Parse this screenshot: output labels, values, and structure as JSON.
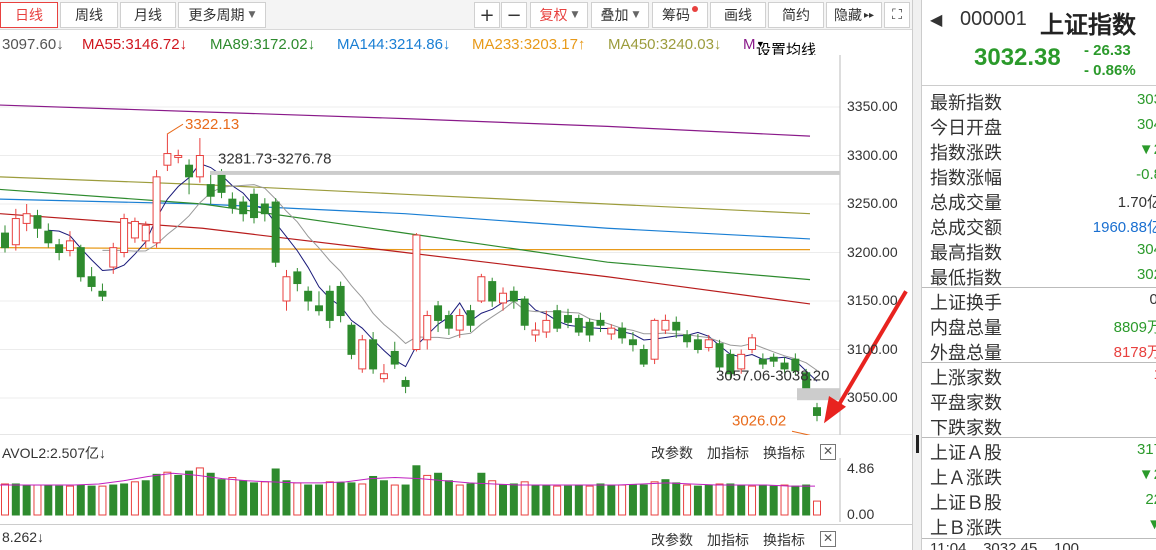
{
  "toolbar": {
    "tabs": [
      {
        "label": "日线",
        "active": true
      },
      {
        "label": "周线"
      },
      {
        "label": "月线"
      },
      {
        "label": "更多周期"
      }
    ],
    "zoom_in": "+",
    "zoom_out": "−",
    "adjust": "复权",
    "overlay": "叠加",
    "chips": "筹码",
    "draw": "画线",
    "brief": "简约",
    "hide": "隐藏",
    "more_glyph": "▸▸"
  },
  "ma_legend": [
    {
      "text": "3097.60↓",
      "color": "#555555"
    },
    {
      "text": "MA55:3146.72↓",
      "color": "#d0161e"
    },
    {
      "text": "MA89:3172.02↓",
      "color": "#2e8b2e"
    },
    {
      "text": "MA144:3214.86↓",
      "color": "#1a7fd4"
    },
    {
      "text": "MA233:3203.17↑",
      "color": "#e89a1a"
    },
    {
      "text": "MA450:3240.03↓",
      "color": "#9c9c3c"
    },
    {
      "text": "M",
      "color": "#8a1a8a"
    },
    {
      "text": "设置均线",
      "color": "#333333"
    }
  ],
  "annotations": {
    "high": "3322.13",
    "gap": "3281.73-3276.78",
    "gap2": "3057.06-3038.20",
    "low": "3026.02"
  },
  "price_axis": {
    "ticks": [
      "3350.00",
      "3300.00",
      "3250.00",
      "3200.00",
      "3150.00",
      "3100.00",
      "3050.00"
    ]
  },
  "volume": {
    "label": "AVOL2:2.507亿↓",
    "buttons": [
      "改参数",
      "加指标",
      "换指标"
    ],
    "ticks": [
      "4.86",
      "0.00"
    ],
    "bottom_label": "8.262↓"
  },
  "panel": {
    "code": "000001",
    "name": "上证指数",
    "price": "3032.38",
    "change": "- 26.33",
    "change_pct": "- 0.86%",
    "rows": [
      {
        "label": "最新指数",
        "value": "303",
        "color": "#2b9a2b"
      },
      {
        "label": "今日开盘",
        "value": "304",
        "color": "#2b9a2b"
      },
      {
        "label": "指数涨跌",
        "value": "▼2",
        "color": "#2b9a2b"
      },
      {
        "label": "指数涨幅",
        "value": "-0.8",
        "color": "#2b9a2b"
      },
      {
        "label": "总成交量",
        "value": "1.70亿",
        "color": "#333333"
      },
      {
        "label": "总成交额",
        "value": "1960.88亿",
        "color": "#1a6fd0"
      },
      {
        "label": "最高指数",
        "value": "304",
        "color": "#2b9a2b"
      },
      {
        "label": "最低指数",
        "value": "302",
        "color": "#2b9a2b"
      },
      {
        "label": "上证换手",
        "value": "0.",
        "color": "#333333"
      },
      {
        "label": "内盘总量",
        "value": "8809万",
        "color": "#2b9a2b"
      },
      {
        "label": "外盘总量",
        "value": "8178万",
        "color": "#e8413f"
      },
      {
        "label": "上涨家数",
        "value": "1",
        "color": "#e8413f"
      },
      {
        "label": "平盘家数",
        "value": "",
        "color": "#333333"
      },
      {
        "label": "下跌家数",
        "value": "",
        "color": "#333333"
      },
      {
        "label": "上证Ａ股",
        "value": "317",
        "color": "#2b9a2b"
      },
      {
        "label": "上Ａ涨跌",
        "value": "▼2",
        "color": "#2b9a2b"
      },
      {
        "label": "上证Ｂ股",
        "value": "22",
        "color": "#2b9a2b"
      },
      {
        "label": "上Ｂ涨跌",
        "value": "▼",
        "color": "#2b9a2b"
      }
    ],
    "footer": "11:04    3032.45    100"
  },
  "chart_data": {
    "type": "candlestick",
    "y_axis_ticks": [
      3050,
      3100,
      3150,
      3200,
      3250,
      3300,
      3350
    ],
    "candles": [
      {
        "o": 3220,
        "c": 3205,
        "h": 3228,
        "l": 3200
      },
      {
        "o": 3208,
        "c": 3235,
        "h": 3245,
        "l": 3202
      },
      {
        "o": 3230,
        "c": 3240,
        "h": 3250,
        "l": 3222
      },
      {
        "o": 3238,
        "c": 3225,
        "h": 3244,
        "l": 3215
      },
      {
        "o": 3222,
        "c": 3210,
        "h": 3230,
        "l": 3205
      },
      {
        "o": 3208,
        "c": 3200,
        "h": 3214,
        "l": 3192
      },
      {
        "o": 3202,
        "c": 3212,
        "h": 3222,
        "l": 3196
      },
      {
        "o": 3205,
        "c": 3175,
        "h": 3208,
        "l": 3170
      },
      {
        "o": 3175,
        "c": 3165,
        "h": 3185,
        "l": 3160
      },
      {
        "o": 3160,
        "c": 3155,
        "h": 3168,
        "l": 3150
      },
      {
        "o": 3185,
        "c": 3205,
        "h": 3210,
        "l": 3178
      },
      {
        "o": 3200,
        "c": 3235,
        "h": 3240,
        "l": 3195
      },
      {
        "o": 3215,
        "c": 3232,
        "h": 3236,
        "l": 3210
      },
      {
        "o": 3212,
        "c": 3228,
        "h": 3232,
        "l": 3205
      },
      {
        "o": 3210,
        "c": 3278,
        "h": 3285,
        "l": 3205
      },
      {
        "o": 3290,
        "c": 3302,
        "h": 3322,
        "l": 3284
      },
      {
        "o": 3298,
        "c": 3300,
        "h": 3306,
        "l": 3292
      },
      {
        "o": 3290,
        "c": 3278,
        "h": 3296,
        "l": 3260
      },
      {
        "o": 3278,
        "c": 3300,
        "h": 3318,
        "l": 3272
      },
      {
        "o": 3270,
        "c": 3258,
        "h": 3280,
        "l": 3250
      },
      {
        "o": 3282,
        "c": 3262,
        "h": 3286,
        "l": 3256
      },
      {
        "o": 3255,
        "c": 3246,
        "h": 3262,
        "l": 3240
      },
      {
        "o": 3252,
        "c": 3240,
        "h": 3258,
        "l": 3232
      },
      {
        "o": 3260,
        "c": 3236,
        "h": 3266,
        "l": 3230
      },
      {
        "o": 3250,
        "c": 3240,
        "h": 3256,
        "l": 3232
      },
      {
        "o": 3252,
        "c": 3190,
        "h": 3256,
        "l": 3185
      },
      {
        "o": 3150,
        "c": 3175,
        "h": 3182,
        "l": 3140
      },
      {
        "o": 3180,
        "c": 3168,
        "h": 3184,
        "l": 3160
      },
      {
        "o": 3160,
        "c": 3150,
        "h": 3165,
        "l": 3140
      },
      {
        "o": 3145,
        "c": 3140,
        "h": 3160,
        "l": 3135
      },
      {
        "o": 3160,
        "c": 3130,
        "h": 3166,
        "l": 3122
      },
      {
        "o": 3165,
        "c": 3135,
        "h": 3170,
        "l": 3128
      },
      {
        "o": 3125,
        "c": 3095,
        "h": 3128,
        "l": 3090
      },
      {
        "o": 3080,
        "c": 3110,
        "h": 3115,
        "l": 3076
      },
      {
        "o": 3110,
        "c": 3080,
        "h": 3118,
        "l": 3075
      },
      {
        "o": 3070,
        "c": 3075,
        "h": 3085,
        "l": 3066
      },
      {
        "o": 3098,
        "c": 3085,
        "h": 3108,
        "l": 3080
      },
      {
        "o": 3068,
        "c": 3062,
        "h": 3072,
        "l": 3055
      },
      {
        "o": 3100,
        "c": 3218,
        "h": 3220,
        "l": 3098
      },
      {
        "o": 3110,
        "c": 3135,
        "h": 3140,
        "l": 3100
      },
      {
        "o": 3145,
        "c": 3130,
        "h": 3150,
        "l": 3118
      },
      {
        "o": 3135,
        "c": 3122,
        "h": 3140,
        "l": 3115
      },
      {
        "o": 3120,
        "c": 3135,
        "h": 3142,
        "l": 3112
      },
      {
        "o": 3140,
        "c": 3125,
        "h": 3146,
        "l": 3118
      },
      {
        "o": 3150,
        "c": 3175,
        "h": 3178,
        "l": 3148
      },
      {
        "o": 3170,
        "c": 3150,
        "h": 3174,
        "l": 3144
      },
      {
        "o": 3148,
        "c": 3158,
        "h": 3164,
        "l": 3140
      },
      {
        "o": 3160,
        "c": 3150,
        "h": 3165,
        "l": 3142
      },
      {
        "o": 3152,
        "c": 3125,
        "h": 3155,
        "l": 3120
      },
      {
        "o": 3115,
        "c": 3120,
        "h": 3128,
        "l": 3108
      },
      {
        "o": 3118,
        "c": 3130,
        "h": 3140,
        "l": 3112
      },
      {
        "o": 3140,
        "c": 3122,
        "h": 3146,
        "l": 3118
      },
      {
        "o": 3135,
        "c": 3128,
        "h": 3142,
        "l": 3122
      },
      {
        "o": 3132,
        "c": 3118,
        "h": 3136,
        "l": 3114
      },
      {
        "o": 3128,
        "c": 3115,
        "h": 3132,
        "l": 3108
      },
      {
        "o": 3130,
        "c": 3125,
        "h": 3138,
        "l": 3118
      },
      {
        "o": 3116,
        "c": 3122,
        "h": 3126,
        "l": 3110
      },
      {
        "o": 3122,
        "c": 3112,
        "h": 3128,
        "l": 3106
      },
      {
        "o": 3110,
        "c": 3105,
        "h": 3118,
        "l": 3098
      },
      {
        "o": 3100,
        "c": 3085,
        "h": 3105,
        "l": 3082
      },
      {
        "o": 3090,
        "c": 3130,
        "h": 3132,
        "l": 3085
      },
      {
        "o": 3120,
        "c": 3130,
        "h": 3136,
        "l": 3116
      },
      {
        "o": 3128,
        "c": 3120,
        "h": 3134,
        "l": 3112
      },
      {
        "o": 3115,
        "c": 3108,
        "h": 3120,
        "l": 3102
      },
      {
        "o": 3110,
        "c": 3100,
        "h": 3116,
        "l": 3096
      },
      {
        "o": 3102,
        "c": 3110,
        "h": 3115,
        "l": 3098
      },
      {
        "o": 3106,
        "c": 3082,
        "h": 3110,
        "l": 3078
      },
      {
        "o": 3095,
        "c": 3075,
        "h": 3100,
        "l": 3070
      },
      {
        "o": 3080,
        "c": 3095,
        "h": 3100,
        "l": 3075
      },
      {
        "o": 3100,
        "c": 3112,
        "h": 3116,
        "l": 3096
      },
      {
        "o": 3090,
        "c": 3085,
        "h": 3096,
        "l": 3080
      },
      {
        "o": 3092,
        "c": 3088,
        "h": 3096,
        "l": 3082
      },
      {
        "o": 3086,
        "c": 3080,
        "h": 3092,
        "l": 3076
      },
      {
        "o": 3090,
        "c": 3078,
        "h": 3096,
        "l": 3074
      },
      {
        "o": 3076,
        "c": 3058,
        "h": 3080,
        "l": 3055
      },
      {
        "o": 3040,
        "c": 3032,
        "h": 3045,
        "l": 3026
      }
    ],
    "ma_lines": {
      "MA450": [
        3278,
        3270,
        3260,
        3250,
        3240
      ],
      "MA233": [
        3205,
        3204,
        3203,
        3203,
        3203
      ],
      "MA144": [
        3255,
        3250,
        3240,
        3225,
        3214
      ],
      "MA89": [
        3265,
        3250,
        3220,
        3190,
        3172
      ],
      "MA55": [
        3240,
        3225,
        3200,
        3175,
        3147
      ],
      "M": [
        3352,
        3345,
        3338,
        3330,
        3320
      ]
    },
    "volume": {
      "max": 4.86,
      "values": [
        2.9,
        2.9,
        2.8,
        2.8,
        2.8,
        2.7,
        2.7,
        2.8,
        2.7,
        2.7,
        2.8,
        2.9,
        3.1,
        3.2,
        3.8,
        4.0,
        3.7,
        4.1,
        4.4,
        3.9,
        3.3,
        3.5,
        3.2,
        3.0,
        3.1,
        4.3,
        3.2,
        3.0,
        2.8,
        2.8,
        3.1,
        3.0,
        3.0,
        2.9,
        3.6,
        3.2,
        2.8,
        2.8,
        4.6,
        3.7,
        3.9,
        3.2,
        2.8,
        2.9,
        3.9,
        3.2,
        2.8,
        2.9,
        3.1,
        2.8,
        2.8,
        2.7,
        2.7,
        2.8,
        2.7,
        2.9,
        2.8,
        2.8,
        2.8,
        2.8,
        3.1,
        3.3,
        3.0,
        2.8,
        2.7,
        2.8,
        2.9,
        2.9,
        2.8,
        2.7,
        2.8,
        2.7,
        2.8,
        2.7,
        2.8,
        1.3
      ],
      "ma": [
        2.8,
        2.8,
        2.8,
        2.8,
        2.9,
        3.2,
        3.6,
        3.9,
        3.7,
        3.4,
        3.2,
        3.1,
        3.0,
        3.0,
        3.1,
        3.4,
        3.5,
        3.4,
        3.2,
        3.0,
        2.9,
        2.8,
        2.8,
        2.8,
        2.8,
        2.8,
        2.9,
        3.0,
        2.9,
        2.8,
        2.8,
        2.8,
        2.7,
        2.7
      ]
    }
  }
}
